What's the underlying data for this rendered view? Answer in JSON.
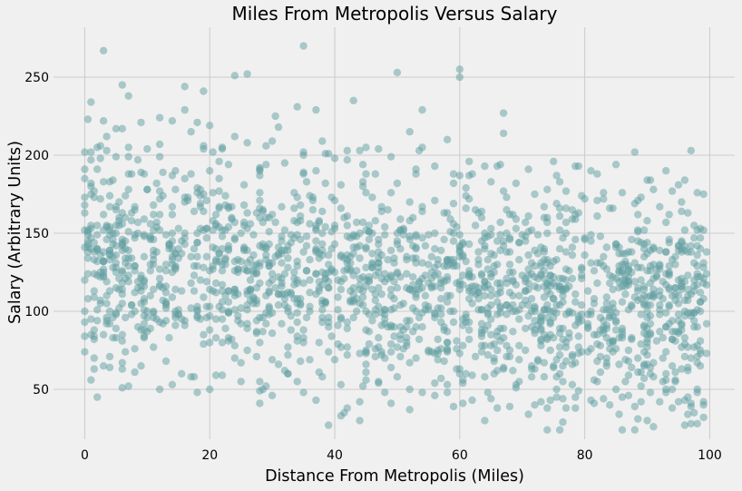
{
  "chart_data": {
    "type": "scatter",
    "title": "Miles From Metropolis Versus Salary",
    "xlabel": "Distance From Metropolis (Miles)",
    "ylabel": "Salary (Arbitrary Units)",
    "xlim": [
      -5,
      104
    ],
    "ylim": [
      18,
      282
    ],
    "xticks": [
      0,
      20,
      40,
      60,
      80,
      100
    ],
    "yticks": [
      50,
      100,
      150,
      200,
      250
    ],
    "grid": true,
    "legend": "none",
    "marker_color": "#5f9ea0",
    "marker_alpha": 0.5,
    "background_color": "#f0f0f0",
    "grid_color": "#cbcbcb",
    "point_count_estimate": 2000,
    "distribution": {
      "x_range": [
        0,
        99.5
      ],
      "salary_intercept": 135,
      "salary_slope_per_mile": -0.35,
      "salary_sd": 38,
      "seed": 20240607
    },
    "points": [
      [
        0,
        202
      ],
      [
        0,
        185
      ],
      [
        0,
        163
      ],
      [
        0,
        141
      ],
      [
        0,
        120
      ],
      [
        0,
        100
      ],
      [
        0,
        84
      ],
      [
        0,
        74
      ],
      [
        1,
        234
      ],
      [
        1,
        197
      ],
      [
        1,
        95
      ],
      [
        1,
        56
      ],
      [
        2,
        205
      ],
      [
        2,
        155
      ],
      [
        2,
        45
      ],
      [
        3,
        267
      ],
      [
        3,
        222
      ],
      [
        3,
        85
      ],
      [
        3,
        65
      ],
      [
        4,
        183
      ],
      [
        4,
        133
      ],
      [
        4,
        71
      ],
      [
        5,
        217
      ],
      [
        5,
        155
      ],
      [
        5,
        115
      ],
      [
        5,
        98
      ],
      [
        6,
        245
      ],
      [
        6,
        217
      ],
      [
        6,
        67
      ],
      [
        6,
        51
      ],
      [
        7,
        238
      ],
      [
        7,
        205
      ],
      [
        7,
        188
      ],
      [
        8,
        167
      ],
      [
        8,
        112
      ],
      [
        8,
        76
      ],
      [
        8,
        61
      ],
      [
        9,
        221
      ],
      [
        9,
        189
      ],
      [
        9,
        65
      ],
      [
        10,
        204
      ],
      [
        10,
        100
      ],
      [
        10,
        87
      ],
      [
        12,
        224
      ],
      [
        12,
        199
      ],
      [
        12,
        50
      ],
      [
        13,
        149
      ],
      [
        13,
        105
      ],
      [
        13,
        68
      ],
      [
        14,
        222
      ],
      [
        14,
        187
      ],
      [
        14,
        53
      ],
      [
        16,
        244
      ],
      [
        16,
        229
      ],
      [
        16,
        170
      ],
      [
        17,
        188
      ],
      [
        17,
        215
      ],
      [
        17,
        58
      ],
      [
        18,
        221
      ],
      [
        18,
        150
      ],
      [
        18,
        48
      ],
      [
        19,
        241
      ],
      [
        19,
        206
      ],
      [
        19,
        175
      ],
      [
        20,
        219
      ],
      [
        20,
        190
      ],
      [
        20,
        50
      ],
      [
        22,
        205
      ],
      [
        22,
        148
      ],
      [
        22,
        59
      ],
      [
        24,
        251
      ],
      [
        24,
        212
      ],
      [
        24,
        114
      ],
      [
        26,
        252
      ],
      [
        26,
        208
      ],
      [
        26,
        92
      ],
      [
        28,
        190
      ],
      [
        28,
        142
      ],
      [
        28,
        49
      ],
      [
        30,
        209
      ],
      [
        30,
        162
      ],
      [
        30,
        46
      ],
      [
        32,
        195
      ],
      [
        32,
        124
      ],
      [
        32,
        62
      ],
      [
        34,
        231
      ],
      [
        34,
        173
      ],
      [
        34,
        55
      ],
      [
        35,
        270
      ],
      [
        35,
        200
      ],
      [
        35,
        48
      ],
      [
        37,
        229
      ],
      [
        37,
        153
      ],
      [
        37,
        43
      ],
      [
        38,
        209
      ],
      [
        38,
        105
      ],
      [
        38,
        58
      ],
      [
        39,
        201
      ],
      [
        39,
        90
      ],
      [
        39,
        27
      ],
      [
        41,
        166
      ],
      [
        41,
        53
      ],
      [
        41,
        33
      ],
      [
        42,
        203
      ],
      [
        42,
        148
      ],
      [
        42,
        38
      ],
      [
        43,
        235
      ],
      [
        43,
        141
      ],
      [
        43,
        96
      ],
      [
        44,
        203
      ],
      [
        44,
        73
      ],
      [
        44,
        30
      ],
      [
        45,
        205
      ],
      [
        45,
        188
      ],
      [
        45,
        56
      ],
      [
        47,
        204
      ],
      [
        47,
        128
      ],
      [
        47,
        55
      ],
      [
        49,
        199
      ],
      [
        49,
        176
      ],
      [
        49,
        41
      ],
      [
        50,
        253
      ],
      [
        50,
        182
      ],
      [
        50,
        58
      ],
      [
        52,
        215
      ],
      [
        52,
        146
      ],
      [
        52,
        50
      ],
      [
        53,
        188
      ],
      [
        53,
        140
      ],
      [
        53,
        70
      ],
      [
        54,
        205
      ],
      [
        54,
        121
      ],
      [
        54,
        48
      ],
      [
        56,
        193
      ],
      [
        56,
        123
      ],
      [
        56,
        54
      ],
      [
        58,
        210
      ],
      [
        58,
        163
      ],
      [
        58,
        48
      ],
      [
        59,
        188
      ],
      [
        59,
        100
      ],
      [
        59,
        39
      ],
      [
        60,
        255
      ],
      [
        60,
        250
      ],
      [
        60,
        187
      ],
      [
        60,
        60
      ],
      [
        62,
        188
      ],
      [
        62,
        105
      ],
      [
        62,
        43
      ],
      [
        64,
        193
      ],
      [
        64,
        140
      ],
      [
        64,
        30
      ],
      [
        65,
        183
      ],
      [
        65,
        124
      ],
      [
        65,
        44
      ],
      [
        66,
        193
      ],
      [
        66,
        118
      ],
      [
        66,
        38
      ],
      [
        67,
        227
      ],
      [
        67,
        214
      ],
      [
        67,
        64
      ],
      [
        69,
        182
      ],
      [
        69,
        100
      ],
      [
        69,
        51
      ],
      [
        71,
        191
      ],
      [
        71,
        127
      ],
      [
        71,
        34
      ],
      [
        72,
        175
      ],
      [
        72,
        86
      ],
      [
        72,
        40
      ],
      [
        74,
        178
      ],
      [
        74,
        96
      ],
      [
        74,
        38
      ],
      [
        75,
        196
      ],
      [
        75,
        132
      ],
      [
        75,
        64
      ],
      [
        76,
        166
      ],
      [
        76,
        104
      ],
      [
        76,
        24
      ],
      [
        77,
        177
      ],
      [
        77,
        80
      ],
      [
        77,
        38
      ],
      [
        78,
        159
      ],
      [
        78,
        71
      ],
      [
        78,
        53
      ],
      [
        79,
        193
      ],
      [
        79,
        97
      ],
      [
        79,
        49
      ],
      [
        81,
        190
      ],
      [
        81,
        100
      ],
      [
        81,
        43
      ],
      [
        82,
        188
      ],
      [
        82,
        171
      ],
      [
        82,
        68
      ],
      [
        83,
        172
      ],
      [
        83,
        90
      ],
      [
        83,
        44
      ],
      [
        84,
        166
      ],
      [
        84,
        123
      ],
      [
        84,
        40
      ],
      [
        85,
        194
      ],
      [
        85,
        143
      ],
      [
        85,
        50
      ],
      [
        86,
        176
      ],
      [
        86,
        85
      ],
      [
        86,
        45
      ],
      [
        88,
        202
      ],
      [
        88,
        109
      ],
      [
        88,
        39
      ],
      [
        89,
        173
      ],
      [
        89,
        79
      ],
      [
        89,
        52
      ],
      [
        90,
        184
      ],
      [
        90,
        137
      ],
      [
        90,
        30
      ],
      [
        91,
        178
      ],
      [
        91,
        58
      ],
      [
        91,
        26
      ],
      [
        92,
        167
      ],
      [
        92,
        104
      ],
      [
        92,
        42
      ],
      [
        93,
        157
      ],
      [
        93,
        124
      ],
      [
        93,
        56
      ],
      [
        94,
        177
      ],
      [
        94,
        94
      ],
      [
        94,
        38
      ],
      [
        95,
        181
      ],
      [
        95,
        110
      ],
      [
        95,
        42
      ],
      [
        96,
        184
      ],
      [
        96,
        79
      ],
      [
        96,
        27
      ],
      [
        97,
        203
      ],
      [
        97,
        142
      ],
      [
        97,
        41
      ],
      [
        98,
        176
      ],
      [
        98,
        124
      ],
      [
        98,
        48
      ],
      [
        99,
        175
      ],
      [
        99,
        128
      ],
      [
        99,
        40
      ],
      [
        99,
        32
      ]
    ]
  }
}
